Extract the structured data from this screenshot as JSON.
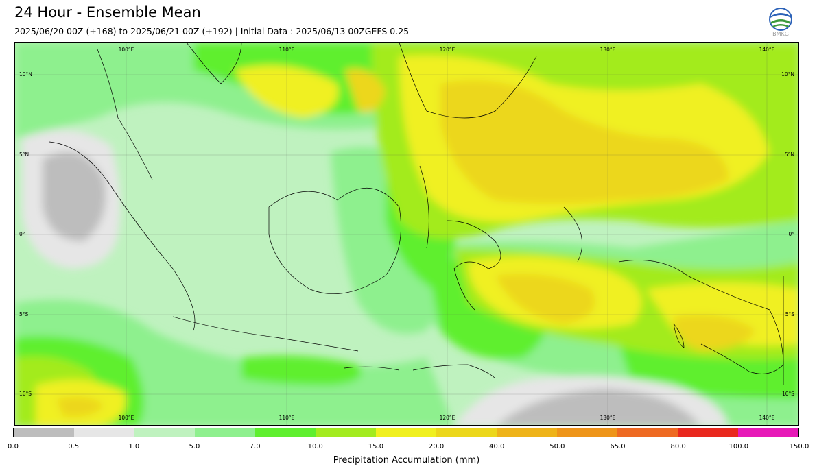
{
  "title": "24 Hour - Ensemble Mean",
  "subtitle": "2025/06/20 00Z (+168) to 2025/06/21 00Z (+192) | Initial Data : 2025/06/13 00ZGEFS 0.25",
  "logo": {
    "icon": "bmkg-logo-icon",
    "text": "BMKG"
  },
  "map": {
    "longitude_labels": [
      "100°E",
      "110°E",
      "120°E",
      "130°E",
      "140°E"
    ],
    "latitude_labels": [
      "10°N",
      "5°N",
      "0°",
      "5°S",
      "10°S"
    ]
  },
  "colorbar": {
    "label": "Precipitation Accumulation (mm)",
    "ticks": [
      "0.0",
      "0.5",
      "1.0",
      "5.0",
      "7.0",
      "10.0",
      "15.0",
      "20.0",
      "40.0",
      "50.0",
      "65.0",
      "80.0",
      "100.0",
      "150.0"
    ],
    "colors": [
      "#bdbdbd",
      "#e6e6e6",
      "#bff2bf",
      "#8ef08e",
      "#5fef2f",
      "#a3eb1f",
      "#f0f020",
      "#ecd71b",
      "#eeb319",
      "#ee951a",
      "#ee6a22",
      "#e9281e",
      "#e71ab8"
    ]
  }
}
